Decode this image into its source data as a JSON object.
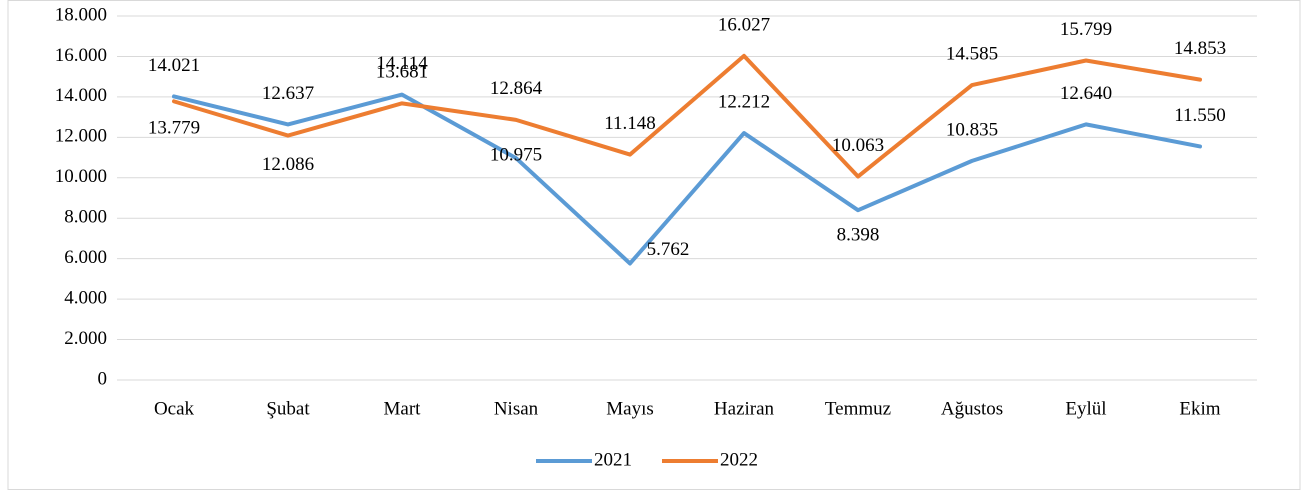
{
  "chart_data": {
    "type": "line",
    "categories": [
      "Ocak",
      "Şubat",
      "Mart",
      "Nisan",
      "Mayıs",
      "Haziran",
      "Temmuz",
      "Ağustos",
      "Eylül",
      "Ekim"
    ],
    "series": [
      {
        "name": "2021",
        "color": "#5b9bd5",
        "values": [
          14021,
          12637,
          14114,
          10975,
          5762,
          12212,
          8398,
          10835,
          12640,
          11550
        ],
        "value_labels": [
          "14.021",
          "12.637",
          "14.114",
          "10.975",
          "5.762",
          "12.212",
          "8.398",
          "10.835",
          "12.640",
          "11.550"
        ]
      },
      {
        "name": "2022",
        "color": "#ed7d31",
        "values": [
          13779,
          12086,
          13681,
          12864,
          11148,
          16027,
          10063,
          14585,
          15799,
          14853
        ],
        "value_labels": [
          "13.779",
          "12.086",
          "13.681",
          "12.864",
          "11.148",
          "16.027",
          "10.063",
          "14.585",
          "15.799",
          "14.853"
        ]
      }
    ],
    "ylim": [
      0,
      18000
    ],
    "yticks": [
      0,
      {
        "value": 2000,
        "label": "2.000"
      },
      {
        "value": 4000,
        "label": "4.000"
      },
      {
        "value": 6000,
        "label": "6.000"
      },
      {
        "value": 8000,
        "label": "8.000"
      },
      {
        "value": 10000,
        "label": "10.000"
      },
      {
        "value": 12000,
        "label": "12.000"
      },
      {
        "value": 14000,
        "label": "14.000"
      },
      {
        "value": 16000,
        "label": "16.000"
      },
      {
        "value": 18000,
        "label": "18.000"
      }
    ],
    "grid": true,
    "legend": "bottom"
  }
}
